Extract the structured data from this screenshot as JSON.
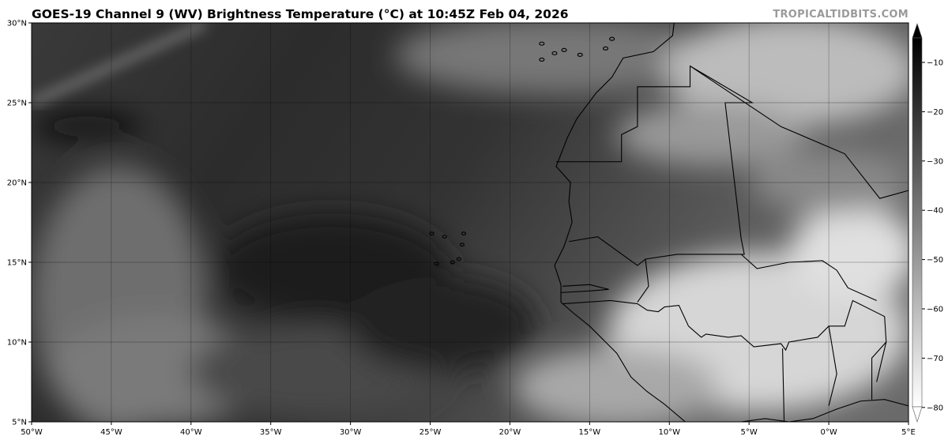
{
  "title": "GOES-19 Channel 9 (WV) Brightness Temperature (°C) at 10:45Z Feb 04, 2026",
  "watermark": "TROPICALTIDBITS.COM",
  "map": {
    "lon_range": [
      -50,
      5
    ],
    "lat_range": [
      5,
      30
    ],
    "gridlines": true,
    "lon_ticks": [
      "50°W",
      "45°W",
      "40°W",
      "35°W",
      "30°W",
      "25°W",
      "20°W",
      "15°W",
      "10°W",
      "5°W",
      "0°W",
      "5°E"
    ],
    "lat_ticks": [
      "5°N",
      "10°N",
      "15°N",
      "20°N",
      "25°N",
      "30°N"
    ]
  },
  "colorbar": {
    "range": [
      -80,
      -5
    ],
    "ticks": [
      "−10",
      "−20",
      "−30",
      "−40",
      "−50",
      "−60",
      "−70",
      "−80"
    ],
    "colors": {
      "warm": "#000000",
      "cold": "#ffffff"
    },
    "extend": "both"
  }
}
